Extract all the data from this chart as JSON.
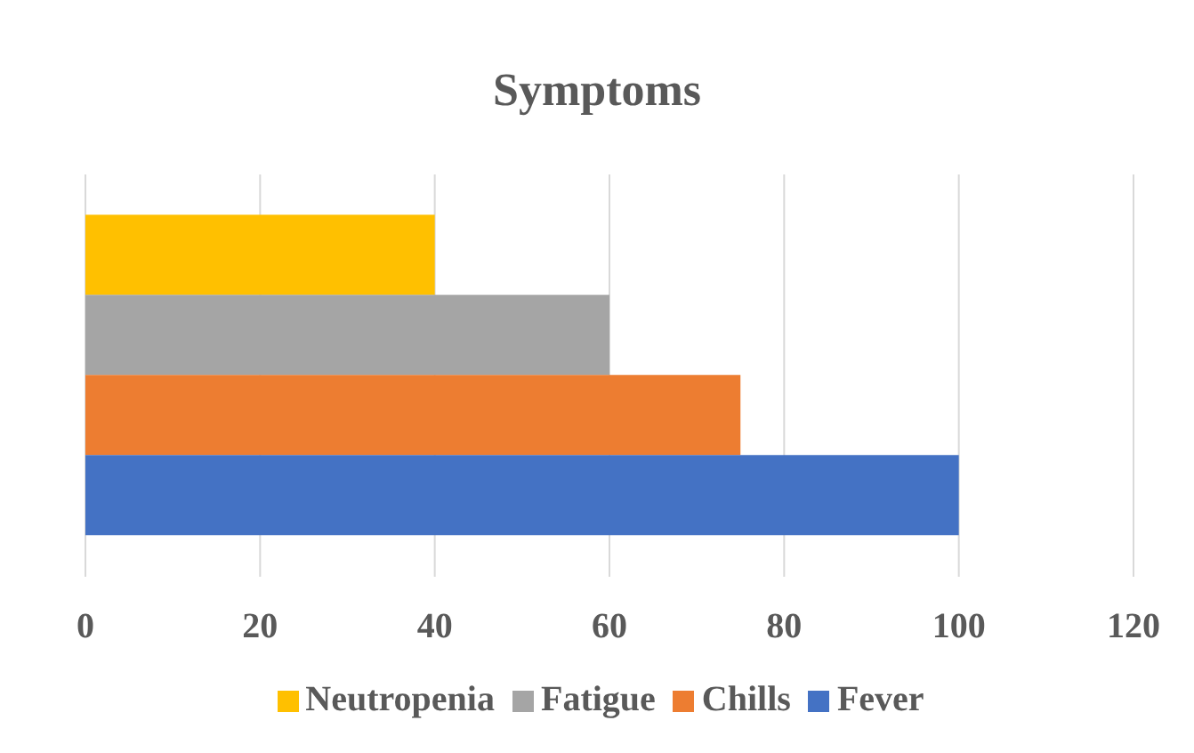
{
  "chart_data": {
    "type": "bar",
    "title": "Symptoms",
    "orientation": "horizontal",
    "categories": [
      null
    ],
    "series": [
      {
        "name": "Neutropenia",
        "color": "#ffc000",
        "values": [
          40
        ]
      },
      {
        "name": "Fatigue",
        "color": "#a5a5a5",
        "values": [
          60
        ]
      },
      {
        "name": "Chills",
        "color": "#ed7d31",
        "values": [
          75
        ]
      },
      {
        "name": "Fever",
        "color": "#4472c4",
        "values": [
          100
        ]
      }
    ],
    "xlim": [
      0,
      120
    ],
    "xticks": [
      0,
      20,
      40,
      60,
      80,
      100,
      120
    ],
    "grid": "x",
    "legend": "bottom",
    "tick_labels": "x"
  }
}
